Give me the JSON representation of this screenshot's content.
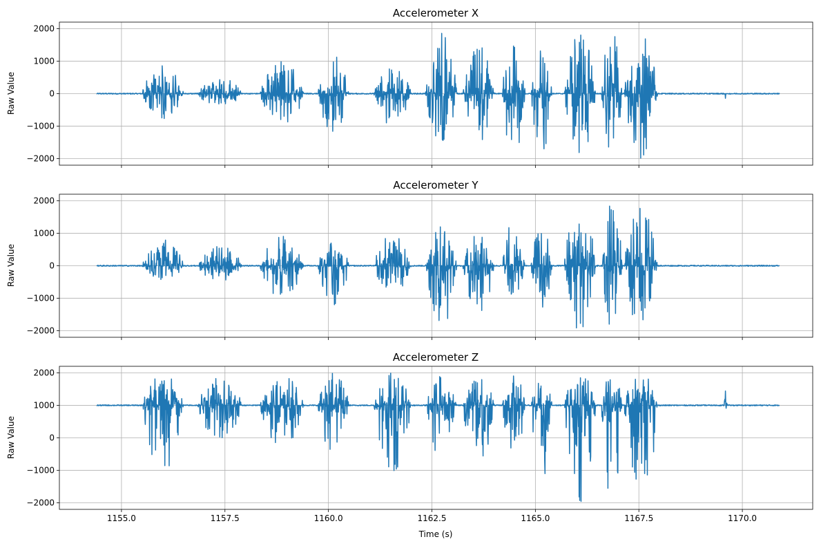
{
  "chart_data": [
    {
      "type": "line",
      "title": "Accelerometer X",
      "xlabel": "",
      "ylabel": "Raw Value",
      "xlim": [
        1153.5,
        1171.7
      ],
      "ylim": [
        -2200,
        2200
      ],
      "xticks": [
        1155.0,
        1157.5,
        1160.0,
        1162.5,
        1165.0,
        1167.5,
        1170.0
      ],
      "yticks": [
        2000,
        1000,
        0,
        -1000,
        -2000
      ],
      "grid": true,
      "color": "#1f77b4",
      "x_range": [
        1154.4,
        1170.9
      ],
      "baseline": 0,
      "bursts": [
        {
          "start": 1155.5,
          "end": 1156.5,
          "max": 900,
          "min": -780
        },
        {
          "start": 1156.85,
          "end": 1157.9,
          "max": 550,
          "min": -420
        },
        {
          "start": 1158.35,
          "end": 1159.4,
          "max": 1050,
          "min": -1050
        },
        {
          "start": 1159.75,
          "end": 1160.5,
          "max": 1250,
          "min": -1250
        },
        {
          "start": 1161.1,
          "end": 1162.0,
          "max": 800,
          "min": -1000
        },
        {
          "start": 1162.35,
          "end": 1163.1,
          "max": 1950,
          "min": -1570
        },
        {
          "start": 1163.25,
          "end": 1164.0,
          "max": 1500,
          "min": -1650
        },
        {
          "start": 1164.2,
          "end": 1164.75,
          "max": 1950,
          "min": -2000
        },
        {
          "start": 1164.9,
          "end": 1165.4,
          "max": 1400,
          "min": -2000
        },
        {
          "start": 1165.7,
          "end": 1166.45,
          "max": 2000,
          "min": -2000
        },
        {
          "start": 1166.6,
          "end": 1167.1,
          "max": 2000,
          "min": -1900
        },
        {
          "start": 1167.15,
          "end": 1167.95,
          "max": 2000,
          "min": -2000
        },
        {
          "start": 1169.55,
          "end": 1169.65,
          "max": 0,
          "min": -180
        }
      ]
    },
    {
      "type": "line",
      "title": "Accelerometer Y",
      "xlabel": "",
      "ylabel": "Raw Value",
      "xlim": [
        1153.5,
        1171.7
      ],
      "ylim": [
        -2200,
        2200
      ],
      "xticks": [
        1155.0,
        1157.5,
        1160.0,
        1162.5,
        1165.0,
        1167.5,
        1170.0
      ],
      "yticks": [
        2000,
        1000,
        0,
        -1000,
        -2000
      ],
      "grid": true,
      "color": "#1f77b4",
      "x_range": [
        1154.4,
        1170.9
      ],
      "baseline": 0,
      "bursts": [
        {
          "start": 1155.5,
          "end": 1156.5,
          "max": 870,
          "min": -430
        },
        {
          "start": 1156.85,
          "end": 1157.9,
          "max": 700,
          "min": -560
        },
        {
          "start": 1158.35,
          "end": 1159.4,
          "max": 920,
          "min": -1030
        },
        {
          "start": 1159.75,
          "end": 1160.5,
          "max": 800,
          "min": -1280
        },
        {
          "start": 1161.1,
          "end": 1162.0,
          "max": 980,
          "min": -850
        },
        {
          "start": 1162.35,
          "end": 1163.1,
          "max": 1230,
          "min": -2000
        },
        {
          "start": 1163.25,
          "end": 1164.0,
          "max": 1000,
          "min": -1500
        },
        {
          "start": 1164.2,
          "end": 1164.75,
          "max": 1450,
          "min": -1400
        },
        {
          "start": 1164.9,
          "end": 1165.4,
          "max": 1200,
          "min": -1450
        },
        {
          "start": 1165.7,
          "end": 1166.45,
          "max": 2000,
          "min": -2000
        },
        {
          "start": 1166.6,
          "end": 1167.1,
          "max": 2000,
          "min": -2000
        },
        {
          "start": 1167.15,
          "end": 1167.95,
          "max": 1850,
          "min": -2000
        }
      ]
    },
    {
      "type": "line",
      "title": "Accelerometer Z",
      "xlabel": "Time (s)",
      "ylabel": "Raw Value",
      "xlim": [
        1153.5,
        1171.7
      ],
      "ylim": [
        -2200,
        2200
      ],
      "xticks": [
        1155.0,
        1157.5,
        1160.0,
        1162.5,
        1165.0,
        1167.5,
        1170.0
      ],
      "xticklabels": [
        "1155.0",
        "1157.5",
        "1160.0",
        "1162.5",
        "1165.0",
        "1167.5",
        "1170.0"
      ],
      "yticks": [
        2000,
        1000,
        0,
        -1000,
        -2000
      ],
      "grid": true,
      "color": "#1f77b4",
      "x_range": [
        1154.4,
        1170.9
      ],
      "baseline": 1000,
      "bursts": [
        {
          "start": 1155.5,
          "end": 1156.5,
          "max": 2000,
          "min": -1100
        },
        {
          "start": 1156.85,
          "end": 1157.9,
          "max": 2000,
          "min": -100
        },
        {
          "start": 1158.35,
          "end": 1159.4,
          "max": 2000,
          "min": -300
        },
        {
          "start": 1159.75,
          "end": 1160.5,
          "max": 2000,
          "min": -600
        },
        {
          "start": 1161.1,
          "end": 1162.0,
          "max": 2000,
          "min": -1150
        },
        {
          "start": 1162.35,
          "end": 1163.1,
          "max": 2000,
          "min": -700
        },
        {
          "start": 1163.25,
          "end": 1164.0,
          "max": 2000,
          "min": -850
        },
        {
          "start": 1164.2,
          "end": 1164.75,
          "max": 2000,
          "min": -600
        },
        {
          "start": 1164.9,
          "end": 1165.4,
          "max": 2000,
          "min": -1600
        },
        {
          "start": 1165.7,
          "end": 1166.45,
          "max": 2000,
          "min": -2000
        },
        {
          "start": 1166.6,
          "end": 1167.1,
          "max": 2000,
          "min": -2000
        },
        {
          "start": 1167.15,
          "end": 1167.95,
          "max": 2000,
          "min": -2000
        },
        {
          "start": 1169.55,
          "end": 1169.65,
          "max": 1450,
          "min": 900
        }
      ]
    }
  ]
}
